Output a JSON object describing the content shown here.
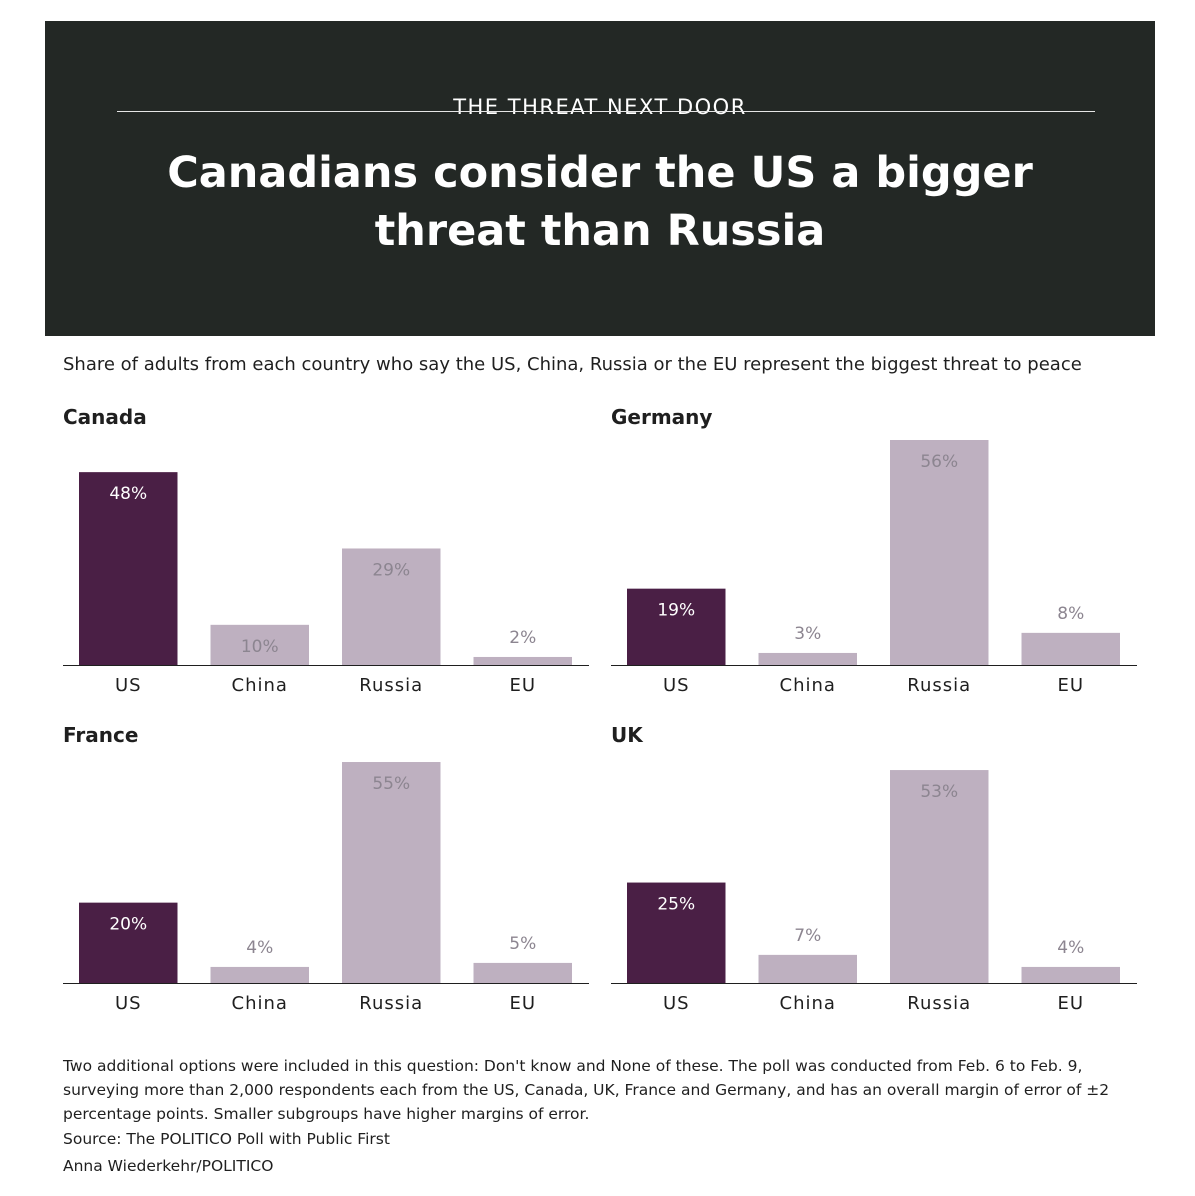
{
  "header": {
    "kicker": "THE THREAT NEXT DOOR",
    "title": "Canadians consider the US a bigger threat than Russia"
  },
  "subtitle": "Share of adults from each country who say the US, China, Russia or the EU represent the biggest threat to peace",
  "colors": {
    "highlight": "#4a1f45",
    "muted": "#beb0c0",
    "header_bg": "#232825",
    "axis": "#1f1f1f",
    "label_on_dark": "#ffffff",
    "label_on_light": "#8c8590"
  },
  "chart_data": [
    {
      "type": "bar",
      "title": "Canada",
      "categories": [
        "US",
        "China",
        "Russia",
        "EU"
      ],
      "values": [
        48,
        10,
        29,
        2
      ],
      "unit": "%",
      "highlight": "US",
      "ylim": [
        0,
        56
      ]
    },
    {
      "type": "bar",
      "title": "Germany",
      "categories": [
        "US",
        "China",
        "Russia",
        "EU"
      ],
      "values": [
        19,
        3,
        56,
        8
      ],
      "unit": "%",
      "highlight": "US",
      "ylim": [
        0,
        56
      ]
    },
    {
      "type": "bar",
      "title": "France",
      "categories": [
        "US",
        "China",
        "Russia",
        "EU"
      ],
      "values": [
        20,
        4,
        55,
        5
      ],
      "unit": "%",
      "highlight": "US",
      "ylim": [
        0,
        56
      ]
    },
    {
      "type": "bar",
      "title": "UK",
      "categories": [
        "US",
        "China",
        "Russia",
        "EU"
      ],
      "values": [
        25,
        7,
        53,
        4
      ],
      "unit": "%",
      "highlight": "US",
      "ylim": [
        0,
        56
      ]
    }
  ],
  "footnote": "Two additional options were included in this question: Don't know and None of these. The poll was conducted from Feb. 6 to Feb. 9, surveying more than 2,000 respondents each from the US, Canada, UK, France and Germany, and has an overall margin of error of ±2 percentage points. Smaller subgroups have higher margins of error.",
  "source": "Source: The POLITICO Poll with Public First",
  "credit": "Anna Wiederkehr/POLITICO"
}
